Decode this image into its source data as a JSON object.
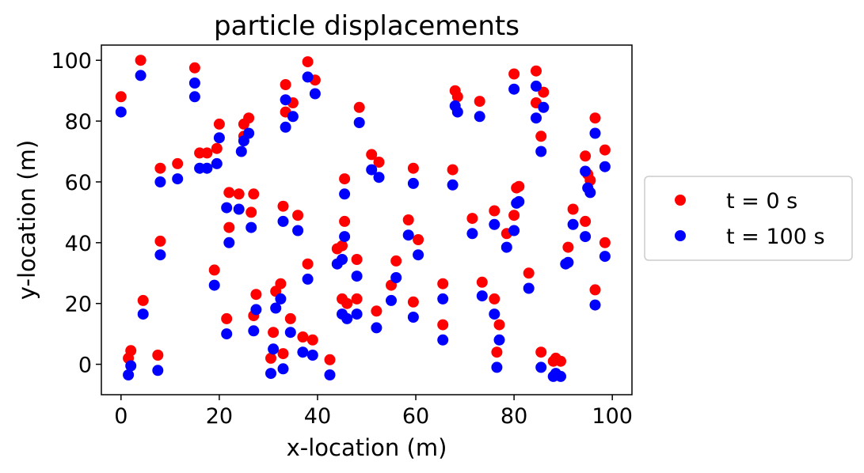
{
  "chart_data": {
    "type": "scatter",
    "title": "particle displacements",
    "xlabel": "x-location (m)",
    "ylabel": "y-location (m)",
    "xlim": [
      -4,
      104
    ],
    "ylim": [
      -10,
      105
    ],
    "xticks": [
      0,
      20,
      40,
      60,
      80,
      100
    ],
    "yticks": [
      0,
      20,
      40,
      60,
      80,
      100
    ],
    "grid": false,
    "legend_position": "outside-right",
    "series": [
      {
        "name": "t = 0 s",
        "color": "#ff0000",
        "points": [
          [
            0,
            88
          ],
          [
            4,
            100
          ],
          [
            15,
            97.5
          ],
          [
            38,
            99.5
          ],
          [
            33.5,
            92
          ],
          [
            39.5,
            93.5
          ],
          [
            35,
            86
          ],
          [
            33.5,
            83
          ],
          [
            26,
            81
          ],
          [
            25,
            79
          ],
          [
            20,
            79
          ],
          [
            25,
            75
          ],
          [
            16,
            69.5
          ],
          [
            17.5,
            69.5
          ],
          [
            19.5,
            71
          ],
          [
            8,
            64.5
          ],
          [
            11.5,
            66
          ],
          [
            22,
            56.5
          ],
          [
            24,
            56
          ],
          [
            27,
            56
          ],
          [
            26.5,
            50
          ],
          [
            33,
            52
          ],
          [
            36,
            49
          ],
          [
            22,
            45
          ],
          [
            8,
            40.5
          ],
          [
            19,
            31
          ],
          [
            38,
            33
          ],
          [
            4.5,
            21
          ],
          [
            27.5,
            23
          ],
          [
            31.5,
            24
          ],
          [
            32.5,
            26.5
          ],
          [
            27,
            16
          ],
          [
            21.5,
            15
          ],
          [
            34.5,
            15
          ],
          [
            31,
            10.5
          ],
          [
            37,
            9
          ],
          [
            39,
            8
          ],
          [
            33,
            3.5
          ],
          [
            30.5,
            2
          ],
          [
            42.5,
            1.5
          ],
          [
            1.5,
            2
          ],
          [
            2,
            4.5
          ],
          [
            7.5,
            3
          ],
          [
            48.5,
            84.5
          ],
          [
            51,
            69
          ],
          [
            52.5,
            66.5
          ],
          [
            45.5,
            61
          ],
          [
            59.5,
            64.5
          ],
          [
            58.5,
            47.5
          ],
          [
            60.5,
            41
          ],
          [
            45.5,
            47
          ],
          [
            45,
            39
          ],
          [
            44,
            38
          ],
          [
            48,
            34.5
          ],
          [
            56,
            34
          ],
          [
            55,
            26
          ],
          [
            45,
            21.5
          ],
          [
            46,
            20
          ],
          [
            48,
            21.5
          ],
          [
            52,
            17.5
          ],
          [
            59.5,
            20.5
          ],
          [
            65.5,
            26.5
          ],
          [
            65.5,
            13
          ],
          [
            67.5,
            64
          ],
          [
            68,
            90
          ],
          [
            68.5,
            88
          ],
          [
            73,
            86.5
          ],
          [
            80,
            95.5
          ],
          [
            84.5,
            96.5
          ],
          [
            84.5,
            86
          ],
          [
            86,
            89.5
          ],
          [
            85.5,
            75
          ],
          [
            81,
            58.5
          ],
          [
            80.5,
            58
          ],
          [
            80,
            49
          ],
          [
            76,
            50.5
          ],
          [
            71.5,
            48
          ],
          [
            78.5,
            43
          ],
          [
            73.5,
            27
          ],
          [
            76,
            21.5
          ],
          [
            77,
            13
          ],
          [
            76.5,
            4
          ],
          [
            83,
            30
          ],
          [
            85.5,
            4
          ],
          [
            88,
            1
          ],
          [
            88.5,
            2
          ],
          [
            89.5,
            1
          ],
          [
            96.5,
            81
          ],
          [
            98.5,
            70.5
          ],
          [
            94.5,
            68.5
          ],
          [
            95,
            62.5
          ],
          [
            95.5,
            60.5
          ],
          [
            92,
            51
          ],
          [
            94.5,
            47
          ],
          [
            91,
            38.5
          ],
          [
            98.5,
            40
          ],
          [
            96.5,
            24.5
          ]
        ]
      },
      {
        "name": "t = 100 s",
        "color": "#0000ff",
        "points": [
          [
            0,
            83
          ],
          [
            4,
            95
          ],
          [
            15,
            92.5
          ],
          [
            15,
            88
          ],
          [
            38,
            94.5
          ],
          [
            39.5,
            89
          ],
          [
            33.5,
            87
          ],
          [
            35,
            81.5
          ],
          [
            33.5,
            78
          ],
          [
            26,
            76
          ],
          [
            25,
            73.5
          ],
          [
            24.5,
            70
          ],
          [
            20,
            74.5
          ],
          [
            16,
            64.5
          ],
          [
            17.5,
            64.5
          ],
          [
            19.5,
            66
          ],
          [
            8,
            60
          ],
          [
            11.5,
            61
          ],
          [
            21.5,
            51.5
          ],
          [
            24,
            51
          ],
          [
            26.5,
            45
          ],
          [
            33,
            47
          ],
          [
            36,
            44
          ],
          [
            22,
            40
          ],
          [
            8,
            36
          ],
          [
            19,
            26
          ],
          [
            38,
            28
          ],
          [
            4.5,
            16.5
          ],
          [
            27.5,
            18
          ],
          [
            31.5,
            18.5
          ],
          [
            32.5,
            21.5
          ],
          [
            27,
            11
          ],
          [
            21.5,
            10
          ],
          [
            34.5,
            10.5
          ],
          [
            31,
            5
          ],
          [
            37,
            4
          ],
          [
            39,
            3
          ],
          [
            33,
            -1.5
          ],
          [
            30.5,
            -3
          ],
          [
            42.5,
            -3.5
          ],
          [
            1.5,
            -3.5
          ],
          [
            2,
            -0.5
          ],
          [
            7.5,
            -2
          ],
          [
            48.5,
            79.5
          ],
          [
            51,
            64
          ],
          [
            52.5,
            61.5
          ],
          [
            45.5,
            56
          ],
          [
            59.5,
            59.5
          ],
          [
            58.5,
            42.5
          ],
          [
            60.5,
            36
          ],
          [
            45.5,
            42
          ],
          [
            45,
            34.5
          ],
          [
            44,
            33
          ],
          [
            48,
            29
          ],
          [
            56,
            28.5
          ],
          [
            55,
            21
          ],
          [
            45,
            16.5
          ],
          [
            46,
            15
          ],
          [
            48,
            16.5
          ],
          [
            52,
            12
          ],
          [
            59.5,
            15.5
          ],
          [
            65.5,
            21.5
          ],
          [
            65.5,
            8
          ],
          [
            67.5,
            59
          ],
          [
            68,
            85
          ],
          [
            68.5,
            83
          ],
          [
            73,
            81.5
          ],
          [
            80,
            90.5
          ],
          [
            84.5,
            91.5
          ],
          [
            84.5,
            81
          ],
          [
            86,
            84.5
          ],
          [
            85.5,
            70
          ],
          [
            81,
            53.5
          ],
          [
            80.5,
            53
          ],
          [
            80,
            44
          ],
          [
            76,
            46
          ],
          [
            71.5,
            43
          ],
          [
            78.5,
            38.5
          ],
          [
            73.5,
            22.5
          ],
          [
            76,
            16.5
          ],
          [
            77,
            8
          ],
          [
            76.5,
            -1
          ],
          [
            83,
            25
          ],
          [
            85.5,
            -1
          ],
          [
            88,
            -4
          ],
          [
            88.5,
            -3
          ],
          [
            89.5,
            -4
          ],
          [
            96.5,
            76
          ],
          [
            98.5,
            65
          ],
          [
            94.5,
            63.5
          ],
          [
            95,
            58
          ],
          [
            95.5,
            56.5
          ],
          [
            92,
            46
          ],
          [
            94.5,
            42
          ],
          [
            91,
            33.5
          ],
          [
            98.5,
            35.5
          ],
          [
            96.5,
            19.5
          ],
          [
            90.5,
            33
          ]
        ]
      }
    ]
  }
}
